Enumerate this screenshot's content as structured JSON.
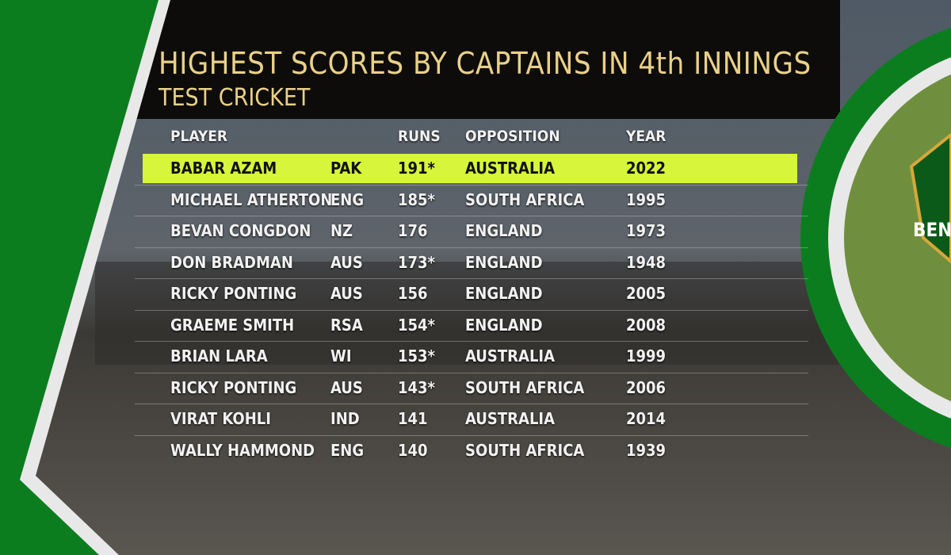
{
  "header": {
    "title": "HIGHEST SCORES BY CAPTAINS IN 4th INNINGS",
    "subtitle": "TEST CRICKET"
  },
  "table": {
    "columns": [
      "PLAYER",
      "RUNS",
      "OPPOSITION",
      "YEAR"
    ],
    "rows": [
      [
        "BABAR AZAM",
        "PAK",
        "191*",
        "AUSTRALIA",
        "2022"
      ],
      [
        "MICHAEL ATHERTON",
        "ENG",
        "185*",
        "SOUTH AFRICA",
        "1995"
      ],
      [
        "BEVAN CONGDON",
        "NZ",
        "176",
        "ENGLAND",
        "1973"
      ],
      [
        "DON BRADMAN",
        "AUS",
        "173*",
        "ENGLAND",
        "1948"
      ],
      [
        "RICKY PONTING",
        "AUS",
        "156",
        "ENGLAND",
        "2005"
      ],
      [
        "GRAEME SMITH",
        "RSA",
        "154*",
        "ENGLAND",
        "2008"
      ],
      [
        "BRIAN LARA",
        "WI",
        "153*",
        "AUSTRALIA",
        "1999"
      ],
      [
        "RICKY PONTING",
        "AUS",
        "143*",
        "SOUTH AFRICA",
        "2006"
      ],
      [
        "VIRAT KOHLI",
        "IND",
        "141",
        "AUSTRALIA",
        "2014"
      ],
      [
        "WALLY HAMMOND",
        "ENG",
        "140",
        "SOUTH AFRICA",
        "1939"
      ]
    ]
  },
  "logo": {
    "text": "BEN"
  }
}
